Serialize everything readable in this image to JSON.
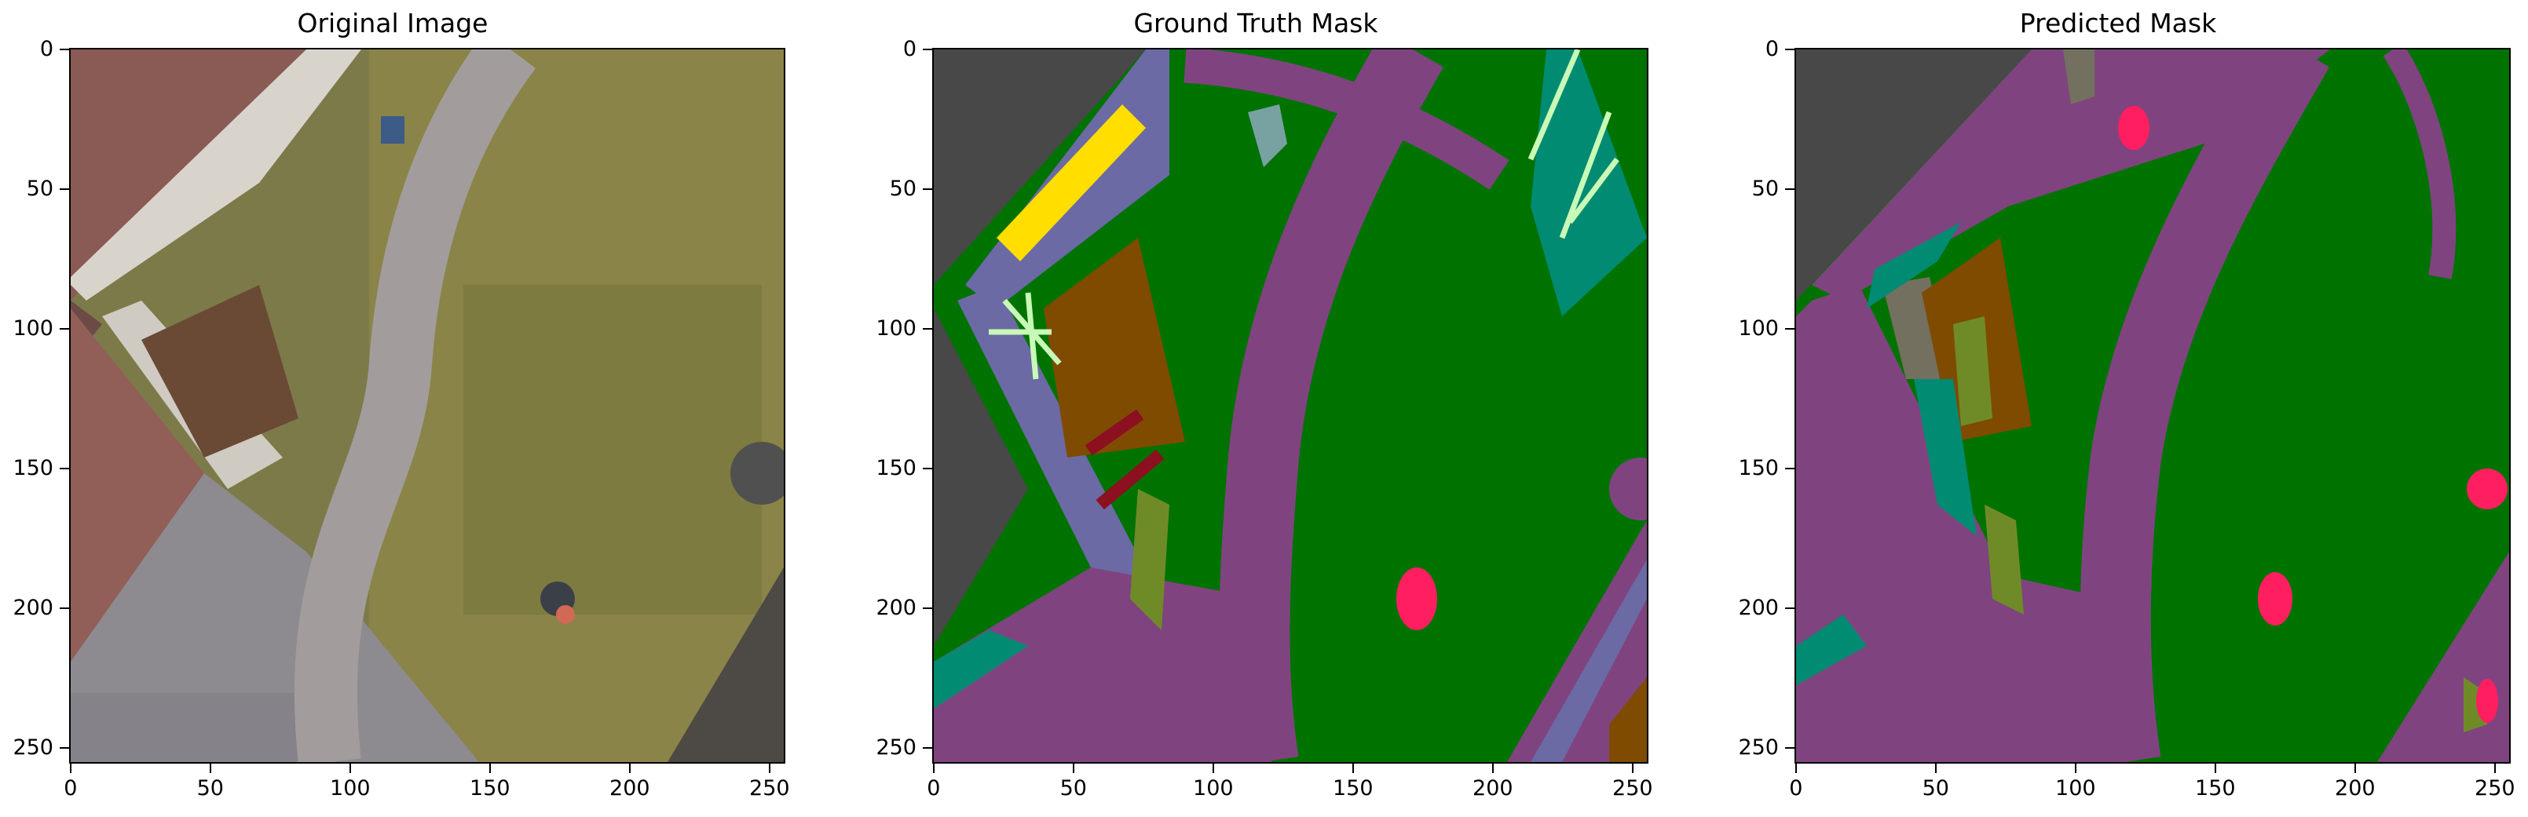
{
  "figure": {
    "panels": [
      {
        "title": "Original Image",
        "x_ticks": [
          "0",
          "50",
          "100",
          "150",
          "200",
          "250"
        ],
        "y_ticks": [
          "0",
          "50",
          "100",
          "150",
          "200",
          "250"
        ],
        "content": "rgb-aerial-photo"
      },
      {
        "title": "Ground Truth Mask",
        "x_ticks": [
          "0",
          "50",
          "100",
          "150",
          "200",
          "250"
        ],
        "y_ticks": [
          "0",
          "50",
          "100",
          "150",
          "200",
          "250"
        ],
        "content": "segmentation-mask"
      },
      {
        "title": "Predicted Mask",
        "x_ticks": [
          "0",
          "50",
          "100",
          "150",
          "200",
          "250"
        ],
        "y_ticks": [
          "0",
          "50",
          "100",
          "150",
          "200",
          "250"
        ],
        "content": "segmentation-mask"
      }
    ],
    "tick_values": [
      0,
      50,
      100,
      150,
      200,
      250
    ],
    "image_extent": [
      -0.5,
      255.5
    ],
    "palette": {
      "grass": "#007200",
      "paved_area": "#7f447f",
      "roof": "#484848",
      "wall": "#6b6aa5",
      "door_or_window": "#ffde00",
      "dirt": "#7f4b00",
      "vegetation": "#6f8b28",
      "tree": "#c8f9b6",
      "pool": "#008b72",
      "rocks": "#737060",
      "person": "#ff1f60",
      "bicycle": "#8c1020",
      "gravel": "#78a2a2"
    }
  }
}
